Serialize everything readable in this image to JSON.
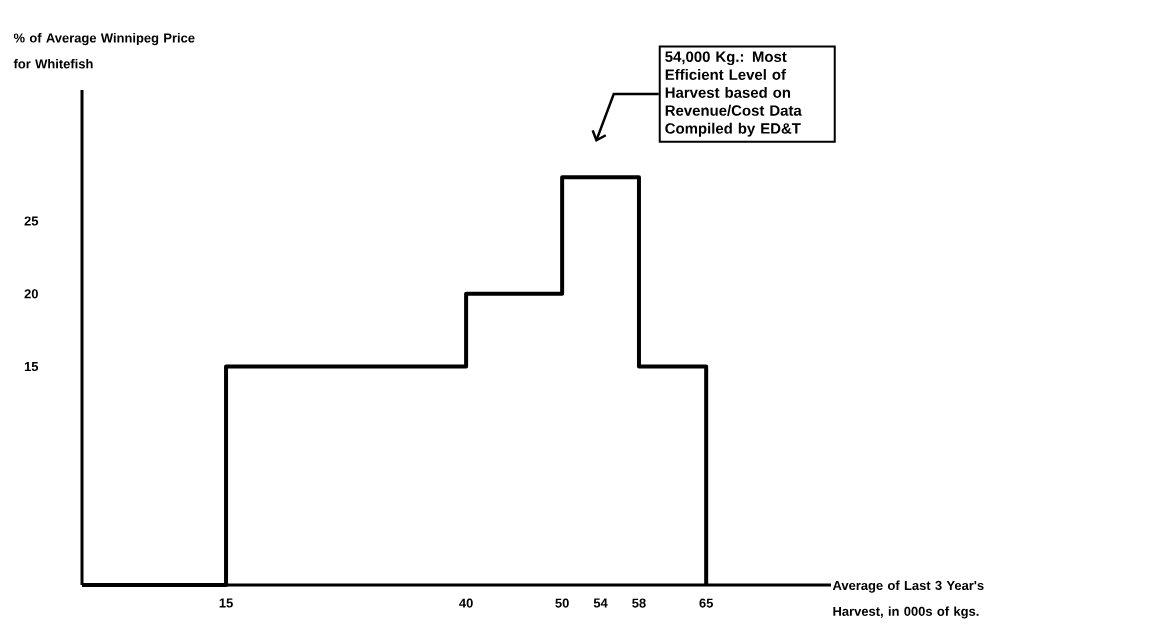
{
  "chart_data": {
    "type": "step",
    "xlabel": "Average of Last 3 Year's Harvest, in 000s of kgs.",
    "ylabel": "% of Average Winnipeg Price for Whitefish",
    "x": [
      0,
      15,
      40,
      50,
      54,
      58,
      65
    ],
    "values": [
      0,
      15,
      20,
      28,
      28,
      15,
      0
    ],
    "color": "#000000",
    "xlim": [
      0,
      78
    ],
    "ylim": [
      0,
      34
    ],
    "xticks": [
      15,
      40,
      50,
      54,
      58,
      65
    ],
    "yticks": [
      15,
      20,
      25
    ],
    "annotations": [
      "54,000 Kg.: Most Efficient Level of Harvest based on Revenue/Cost Data Compiled by ED&T"
    ]
  }
}
